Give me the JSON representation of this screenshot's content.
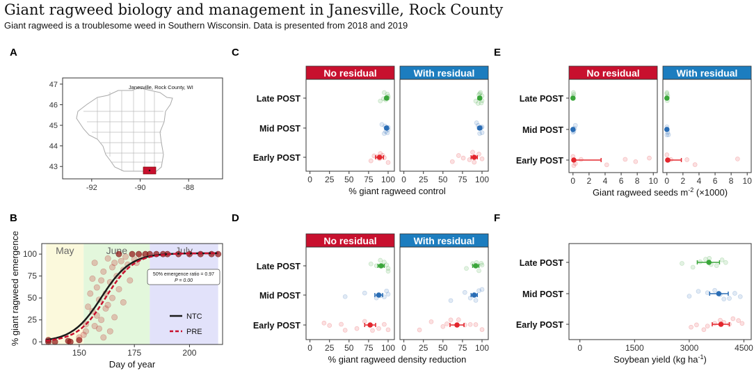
{
  "header": {
    "title": "Giant ragweed biology and management in Janesville, Rock County",
    "subtitle": "Giant ragweed is a troublesome weed in Southern Wisconsin. Data is presented from 2018 and 2019"
  },
  "colors": {
    "red": "#e3262d",
    "green": "#3aa63a",
    "blue": "#2a6db5",
    "strip_no_residual": "#c8102e",
    "strip_with_residual": "#1c7dbf",
    "may_band": "#fbf9dc",
    "june_band": "#e3f7dc",
    "july_band": "#e2e2fa",
    "county": "#c8102e"
  },
  "panel_labels": [
    "A",
    "B",
    "C",
    "D",
    "E",
    "F"
  ],
  "chart_data": [
    {
      "id": "A",
      "type": "map",
      "annotation": "Janesville, Rock County, WI",
      "xticks": [
        -92,
        -90,
        -88
      ],
      "yticks": [
        43,
        44,
        45,
        46,
        47
      ],
      "xlim": [
        -93.2,
        -86.6
      ],
      "ylim": [
        42.4,
        47.3
      ]
    },
    {
      "id": "B",
      "type": "line",
      "xlabel": "Day of year",
      "ylabel": "% giant ragweed emergence",
      "xlim": [
        133,
        215
      ],
      "ylim": [
        -3,
        112
      ],
      "xticks": [
        150,
        175,
        200
      ],
      "yticks": [
        0,
        25,
        50,
        75,
        100
      ],
      "months": [
        {
          "name": "May",
          "start": 135,
          "end": 152
        },
        {
          "name": "June",
          "start": 152,
          "end": 182
        },
        {
          "name": "July",
          "start": 182,
          "end": 213
        }
      ],
      "annotation_line1": "50% emergence ratio = 0.97",
      "annotation_line2": "P = 0.00",
      "series": [
        {
          "name": "NTC",
          "style": "solid",
          "color": "#1a1a1a",
          "midpoint": 160,
          "scale": 6.6
        },
        {
          "name": "PRE",
          "style": "dashed",
          "color": "#c8102e",
          "midpoint": 162,
          "scale": 6.4
        }
      ],
      "points": [
        [
          136,
          0
        ],
        [
          136,
          2
        ],
        [
          139,
          0
        ],
        [
          145,
          1
        ],
        [
          146,
          0
        ],
        [
          150,
          2
        ],
        [
          150,
          5
        ],
        [
          152,
          8
        ],
        [
          153,
          12
        ],
        [
          153,
          20
        ],
        [
          154,
          40
        ],
        [
          155,
          55
        ],
        [
          156,
          72
        ],
        [
          156,
          35
        ],
        [
          157,
          18
        ],
        [
          157,
          90
        ],
        [
          158,
          30
        ],
        [
          158,
          62
        ],
        [
          159,
          15
        ],
        [
          159,
          48
        ],
        [
          160,
          70
        ],
        [
          160,
          25
        ],
        [
          161,
          5
        ],
        [
          161,
          80
        ],
        [
          162,
          55
        ],
        [
          162,
          38
        ],
        [
          163,
          95
        ],
        [
          163,
          42
        ],
        [
          164,
          12
        ],
        [
          164,
          68
        ],
        [
          165,
          85
        ],
        [
          165,
          50
        ],
        [
          166,
          28
        ],
        [
          166,
          90
        ],
        [
          167,
          75
        ],
        [
          168,
          60
        ],
        [
          168,
          100
        ],
        [
          169,
          92
        ],
        [
          170,
          45
        ],
        [
          170,
          82
        ],
        [
          171,
          97
        ],
        [
          172,
          88
        ],
        [
          173,
          70
        ],
        [
          174,
          100
        ],
        [
          175,
          94
        ],
        [
          176,
          90
        ],
        [
          177,
          100
        ],
        [
          178,
          97
        ],
        [
          180,
          100
        ],
        [
          182,
          100
        ],
        [
          185,
          100
        ],
        [
          188,
          100
        ],
        [
          190,
          100
        ],
        [
          195,
          100
        ],
        [
          200,
          100
        ],
        [
          205,
          100
        ],
        [
          210,
          100
        ],
        [
          213,
          100
        ]
      ]
    },
    {
      "id": "C",
      "type": "scatter",
      "xlabel": "% giant ragweed control",
      "xticks": [
        0,
        25,
        50,
        75,
        100
      ],
      "xlim": [
        -5,
        108
      ],
      "categories": [
        "Early POST",
        "Mid POST",
        "Late POST"
      ],
      "facets": [
        {
          "label": "No residual",
          "means": [
            {
              "category": "Early POST",
              "mean": 89,
              "lo": 84,
              "hi": 94
            },
            {
              "category": "Mid POST",
              "mean": 98,
              "lo": 96,
              "hi": 100
            },
            {
              "category": "Late POST",
              "mean": 98,
              "lo": 96,
              "hi": 100
            }
          ],
          "raw": {
            "Early POST": [
              82,
              86,
              89,
              90,
              93,
              95,
              100,
              78
            ],
            "Mid POST": [
              92,
              95,
              97,
              98,
              99,
              100,
              100,
              96
            ],
            "Late POST": [
              90,
              94,
              97,
              98,
              99,
              100,
              100,
              95
            ]
          }
        },
        {
          "label": "With residual",
          "means": [
            {
              "category": "Early POST",
              "mean": 90,
              "lo": 86,
              "hi": 94
            },
            {
              "category": "Mid POST",
              "mean": 97,
              "lo": 95,
              "hi": 99
            },
            {
              "category": "Late POST",
              "mean": 97,
              "lo": 95,
              "hi": 99
            }
          ],
          "raw": {
            "Early POST": [
              62,
              70,
              76,
              84,
              90,
              96,
              100,
              88
            ],
            "Mid POST": [
              93,
              96,
              98,
              99,
              100,
              100,
              97,
              95
            ],
            "Late POST": [
              92,
              95,
              97,
              98,
              100,
              100,
              96,
              99
            ]
          }
        }
      ]
    },
    {
      "id": "D",
      "type": "scatter",
      "xlabel": "% giant ragweed density reduction",
      "xticks": [
        0,
        25,
        50,
        75,
        100
      ],
      "xlim": [
        -5,
        108
      ],
      "categories": [
        "Early POST",
        "Mid POST",
        "Late POST"
      ],
      "facets": [
        {
          "label": "No residual",
          "means": [
            {
              "category": "Early POST",
              "mean": 77,
              "lo": 70,
              "hi": 84
            },
            {
              "category": "Mid POST",
              "mean": 88,
              "lo": 83,
              "hi": 93
            },
            {
              "category": "Late POST",
              "mean": 91,
              "lo": 87,
              "hi": 95
            }
          ],
          "raw": {
            "Early POST": [
              18,
              25,
              45,
              60,
              70,
              80,
              88,
              95,
              100,
              40
            ],
            "Mid POST": [
              45,
              70,
              85,
              90,
              95,
              100,
              98
            ],
            "Late POST": [
              78,
              85,
              90,
              95,
              98,
              100,
              100
            ]
          }
        },
        {
          "label": "With residual",
          "means": [
            {
              "category": "Early POST",
              "mean": 68,
              "lo": 59,
              "hi": 77
            },
            {
              "category": "Mid POST",
              "mean": 90,
              "lo": 86,
              "hi": 94
            },
            {
              "category": "Late POST",
              "mean": 92,
              "lo": 88,
              "hi": 96
            }
          ],
          "raw": {
            "Early POST": [
              20,
              35,
              50,
              60,
              70,
              78,
              85,
              92,
              100,
              55
            ],
            "Mid POST": [
              60,
              78,
              85,
              92,
              96,
              100
            ],
            "Late POST": [
              80,
              88,
              93,
              96,
              99,
              100
            ]
          }
        }
      ]
    },
    {
      "id": "E",
      "type": "scatter",
      "xlabel": "Giant ragweed seeds m",
      "xlabel_sup": "-2",
      "xlabel_suffix": " (×1000)",
      "xticks": [
        0,
        2,
        4,
        6,
        8,
        10
      ],
      "xlim": [
        -0.5,
        10.5
      ],
      "categories": [
        "Early POST",
        "Mid POST",
        "Late POST"
      ],
      "facets": [
        {
          "label": "No residual",
          "means": [
            {
              "category": "Early POST",
              "mean": 0.1,
              "lo": 0,
              "hi": 3.5
            },
            {
              "category": "Mid POST",
              "mean": 0,
              "lo": 0,
              "hi": 0
            },
            {
              "category": "Late POST",
              "mean": 0,
              "lo": 0,
              "hi": 0
            }
          ],
          "raw": {
            "Early POST": [
              0,
              0.1,
              0.3,
              1,
              4.2,
              6.5,
              7.8,
              9.5
            ],
            "Mid POST": [
              0,
              0,
              0.1,
              0.2,
              0.3
            ],
            "Late POST": [
              0,
              0,
              0.05,
              0.1
            ]
          }
        },
        {
          "label": "With residual",
          "means": [
            {
              "category": "Early POST",
              "mean": 0.1,
              "lo": 0,
              "hi": 1.8
            },
            {
              "category": "Mid POST",
              "mean": 0,
              "lo": 0,
              "hi": 0
            },
            {
              "category": "Late POST",
              "mean": 0,
              "lo": 0,
              "hi": 0
            }
          ],
          "raw": {
            "Early POST": [
              0,
              0.2,
              0.5,
              2.5,
              3.5,
              8.8
            ],
            "Mid POST": [
              0,
              0,
              0.1,
              0.2
            ],
            "Late POST": [
              0,
              0,
              0.05,
              0.1
            ]
          }
        }
      ]
    },
    {
      "id": "F",
      "type": "scatter",
      "xlabel": "Soybean yield (kg ha",
      "xlabel_sup": "-1",
      "xlabel_suffix": ")",
      "xticks": [
        0,
        1500,
        3000,
        4500
      ],
      "xlim": [
        -300,
        4700
      ],
      "categories": [
        "Early POST",
        "Mid POST",
        "Late POST"
      ],
      "facets": [
        {
          "label": "",
          "means": [
            {
              "category": "Early POST",
              "mean": 3870,
              "lo": 3630,
              "hi": 4100
            },
            {
              "category": "Mid POST",
              "mean": 3810,
              "lo": 3560,
              "hi": 4070
            },
            {
              "category": "Late POST",
              "mean": 3540,
              "lo": 3220,
              "hi": 3830
            }
          ],
          "raw": {
            "Early POST": [
              3050,
              3200,
              3500,
              3700,
              3850,
              3950,
              4100,
              4200,
              4350,
              4450,
              3400
            ],
            "Mid POST": [
              3000,
              3250,
              3500,
              3700,
              3850,
              3950,
              4100,
              4250,
              4400
            ],
            "Late POST": [
              2800,
              3100,
              3300,
              3450,
              3600,
              3750,
              3900,
              4000,
              3550
            ]
          }
        }
      ]
    }
  ]
}
